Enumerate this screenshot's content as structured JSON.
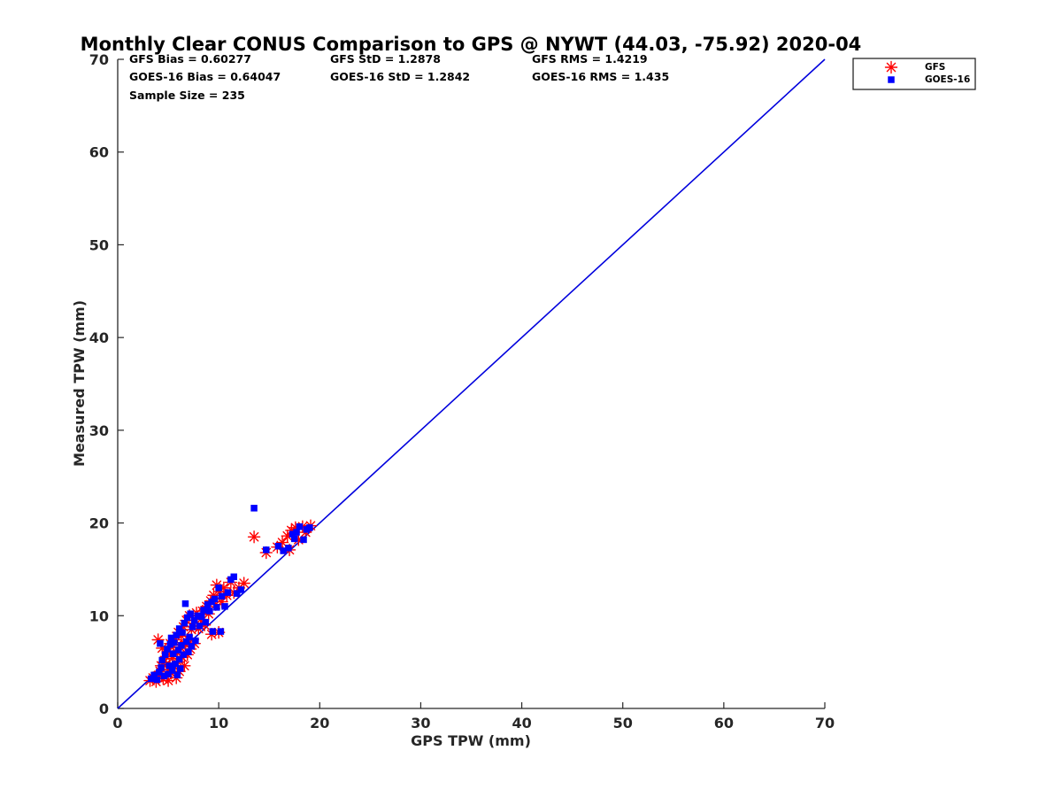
{
  "chart_data": {
    "type": "scatter",
    "title": "Monthly Clear CONUS Comparison to GPS @ NYWT (44.03, -75.92) 2020-04",
    "xlabel": "GPS TPW (mm)",
    "ylabel": "Measured TPW (mm)",
    "xlim": [
      0,
      70
    ],
    "ylim": [
      0,
      70
    ],
    "xticks": [
      "0",
      "10",
      "20",
      "30",
      "40",
      "50",
      "60",
      "70"
    ],
    "yticks": [
      "0",
      "10",
      "20",
      "30",
      "40",
      "50",
      "60",
      "70"
    ],
    "grid": false,
    "legend_position": "outside-top-right",
    "stats": {
      "gfs_bias": "GFS Bias = 0.60277",
      "gfs_std": "GFS StD = 1.2878",
      "gfs_rms": "GFS RMS = 1.4219",
      "goes_bias": "GOES-16 Bias = 0.64047",
      "goes_std": "GOES-16 StD = 1.2842",
      "goes_rms": "GOES-16 RMS = 1.435",
      "sample_size": "Sample Size = 235"
    },
    "reference_line": {
      "x": [
        0,
        70
      ],
      "y": [
        0,
        70
      ],
      "color": "#0000dd"
    },
    "series": [
      {
        "name": "GFS",
        "marker": "asterisk",
        "color": "#ff0000",
        "points": [
          [
            3.2,
            3.0
          ],
          [
            3.5,
            3.3
          ],
          [
            3.8,
            2.9
          ],
          [
            4.0,
            3.5
          ],
          [
            4.2,
            4.0
          ],
          [
            4.3,
            4.6
          ],
          [
            4.5,
            3.2
          ],
          [
            4.6,
            5.0
          ],
          [
            4.8,
            5.6
          ],
          [
            5.0,
            3.0
          ],
          [
            5.0,
            4.2
          ],
          [
            5.1,
            6.2
          ],
          [
            5.2,
            7.0
          ],
          [
            5.3,
            3.8
          ],
          [
            5.4,
            5.4
          ],
          [
            5.5,
            6.8
          ],
          [
            5.6,
            4.5
          ],
          [
            5.7,
            7.4
          ],
          [
            5.8,
            3.3
          ],
          [
            5.9,
            6.0
          ],
          [
            6.0,
            5.0
          ],
          [
            6.0,
            8.2
          ],
          [
            6.1,
            4.0
          ],
          [
            6.2,
            6.6
          ],
          [
            6.3,
            7.8
          ],
          [
            6.4,
            5.5
          ],
          [
            6.5,
            8.8
          ],
          [
            6.6,
            4.6
          ],
          [
            6.7,
            6.9
          ],
          [
            6.8,
            9.5
          ],
          [
            6.9,
            5.8
          ],
          [
            7.0,
            7.4
          ],
          [
            7.1,
            10.0
          ],
          [
            7.2,
            6.4
          ],
          [
            7.3,
            8.5
          ],
          [
            7.5,
            9.2
          ],
          [
            7.6,
            7.0
          ],
          [
            7.8,
            10.3
          ],
          [
            8.0,
            8.6
          ],
          [
            8.2,
            9.6
          ],
          [
            8.4,
            10.5
          ],
          [
            8.6,
            9.0
          ],
          [
            8.8,
            11.0
          ],
          [
            9.0,
            10.2
          ],
          [
            9.2,
            11.6
          ],
          [
            9.3,
            8.0
          ],
          [
            9.5,
            12.2
          ],
          [
            9.7,
            11.2
          ],
          [
            9.8,
            13.3
          ],
          [
            10.0,
            8.2
          ],
          [
            10.1,
            12.6
          ],
          [
            10.3,
            11.5
          ],
          [
            10.5,
            13.0
          ],
          [
            10.8,
            12.2
          ],
          [
            11.2,
            13.6
          ],
          [
            11.5,
            12.5
          ],
          [
            12.0,
            13.0
          ],
          [
            12.5,
            13.5
          ],
          [
            4.0,
            7.4
          ],
          [
            4.4,
            6.5
          ],
          [
            13.5,
            18.5
          ],
          [
            14.7,
            16.8
          ],
          [
            15.8,
            17.4
          ],
          [
            16.3,
            17.9
          ],
          [
            16.8,
            18.6
          ],
          [
            17.2,
            19.2
          ],
          [
            17.6,
            19.5
          ],
          [
            17.9,
            18.2
          ],
          [
            18.3,
            19.6
          ],
          [
            18.6,
            19.0
          ],
          [
            19.1,
            19.7
          ],
          [
            17.0,
            17.1
          ]
        ]
      },
      {
        "name": "GOES-16",
        "marker": "square",
        "color": "#0000ff",
        "points": [
          [
            3.3,
            3.2
          ],
          [
            3.6,
            3.6
          ],
          [
            3.9,
            3.1
          ],
          [
            4.1,
            3.9
          ],
          [
            4.3,
            4.4
          ],
          [
            4.4,
            5.2
          ],
          [
            4.6,
            3.5
          ],
          [
            4.7,
            5.8
          ],
          [
            4.9,
            6.4
          ],
          [
            5.0,
            3.7
          ],
          [
            5.1,
            4.6
          ],
          [
            5.2,
            6.9
          ],
          [
            5.3,
            7.6
          ],
          [
            5.4,
            4.1
          ],
          [
            5.5,
            5.9
          ],
          [
            5.6,
            7.1
          ],
          [
            5.7,
            4.8
          ],
          [
            5.8,
            7.9
          ],
          [
            5.9,
            3.6
          ],
          [
            6.0,
            6.3
          ],
          [
            6.1,
            5.3
          ],
          [
            6.1,
            8.6
          ],
          [
            6.2,
            4.3
          ],
          [
            6.3,
            6.8
          ],
          [
            6.4,
            8.2
          ],
          [
            6.5,
            5.8
          ],
          [
            6.6,
            9.2
          ],
          [
            6.7,
            11.3
          ],
          [
            6.8,
            7.2
          ],
          [
            6.9,
            9.8
          ],
          [
            7.0,
            6.1
          ],
          [
            7.1,
            7.7
          ],
          [
            7.2,
            10.2
          ],
          [
            7.3,
            6.7
          ],
          [
            7.4,
            8.8
          ],
          [
            7.6,
            9.5
          ],
          [
            7.7,
            7.3
          ],
          [
            7.9,
            10.0
          ],
          [
            8.1,
            8.9
          ],
          [
            8.3,
            9.9
          ],
          [
            8.5,
            10.6
          ],
          [
            8.7,
            9.3
          ],
          [
            8.9,
            11.2
          ],
          [
            9.1,
            10.5
          ],
          [
            9.3,
            11.5
          ],
          [
            9.4,
            8.3
          ],
          [
            9.6,
            11.8
          ],
          [
            9.8,
            10.9
          ],
          [
            10.0,
            13.0
          ],
          [
            10.2,
            8.3
          ],
          [
            10.3,
            12.1
          ],
          [
            10.6,
            11.0
          ],
          [
            10.9,
            12.5
          ],
          [
            11.2,
            13.9
          ],
          [
            11.5,
            14.2
          ],
          [
            11.8,
            12.4
          ],
          [
            12.2,
            12.8
          ],
          [
            4.2,
            7.0
          ],
          [
            13.5,
            21.6
          ],
          [
            14.7,
            17.1
          ],
          [
            15.9,
            17.5
          ],
          [
            16.4,
            17.0
          ],
          [
            16.9,
            17.3
          ],
          [
            17.3,
            18.8
          ],
          [
            17.7,
            19.0
          ],
          [
            18.0,
            19.6
          ],
          [
            18.4,
            18.2
          ],
          [
            18.7,
            19.3
          ],
          [
            19.0,
            19.5
          ],
          [
            17.5,
            18.3
          ]
        ]
      }
    ]
  }
}
